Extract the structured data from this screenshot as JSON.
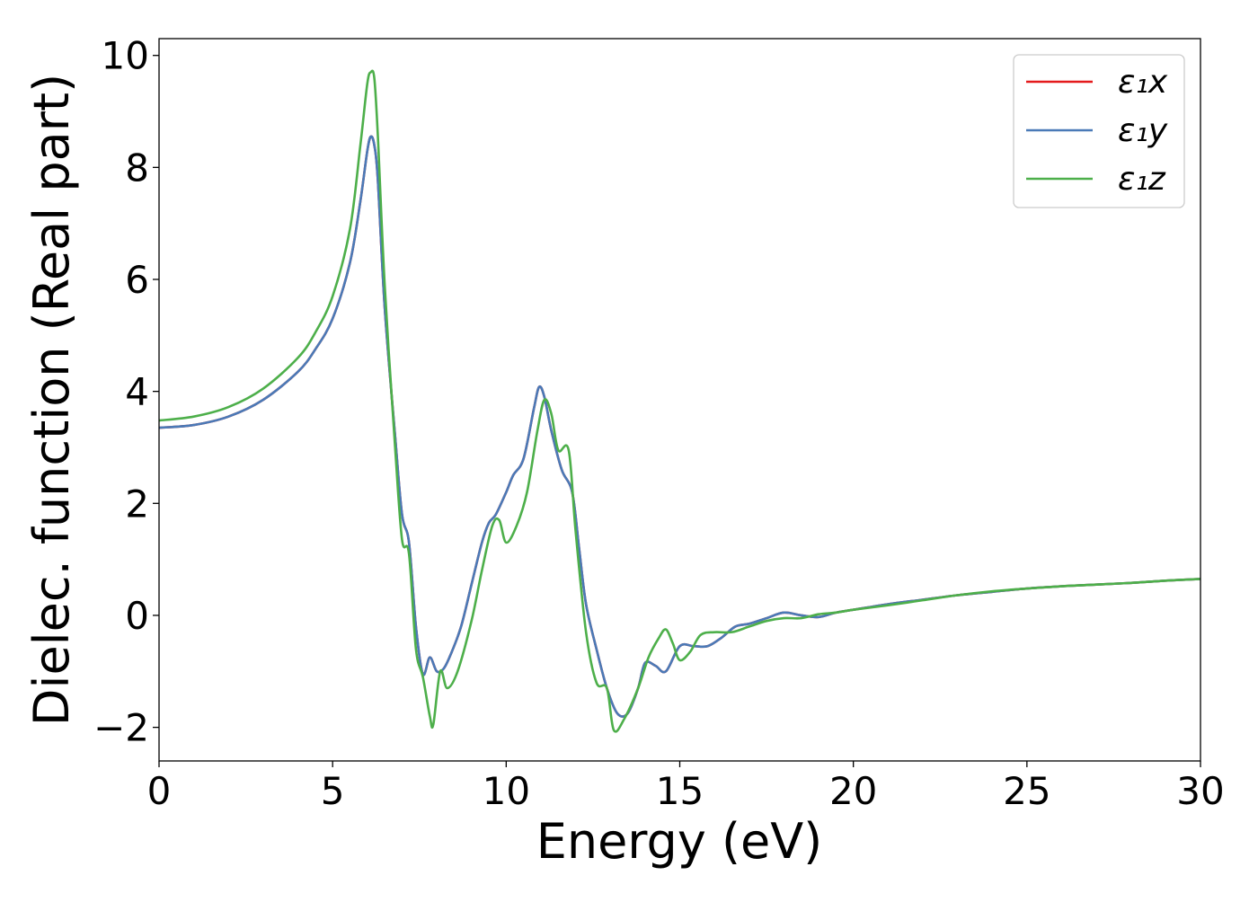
{
  "chart_data": {
    "type": "line",
    "title": "",
    "xlabel": "Energy (eV)",
    "ylabel": "Dielec. function (Real part)",
    "xlim": [
      0,
      30
    ],
    "ylim": [
      -2.6,
      10.3
    ],
    "xticks": [
      0,
      5,
      10,
      15,
      20,
      25,
      30
    ],
    "xtick_labels": [
      "0",
      "5",
      "10",
      "15",
      "20",
      "25",
      "30"
    ],
    "yticks": [
      -2,
      0,
      2,
      4,
      6,
      8,
      10
    ],
    "ytick_labels": [
      "−2",
      "0",
      "2",
      "4",
      "6",
      "8",
      "10"
    ],
    "grid": false,
    "legend_position": "top-right",
    "series": [
      {
        "name": "ε₁x",
        "color": "#e41a1c",
        "x": [
          0,
          1,
          2,
          3,
          4,
          4.5,
          5,
          5.5,
          5.8,
          6,
          6.1,
          6.2,
          6.3,
          6.5,
          6.8,
          7.0,
          7.2,
          7.4,
          7.6,
          7.8,
          8.0,
          8.2,
          8.4,
          8.7,
          9.0,
          9.3,
          9.5,
          9.7,
          10,
          10.2,
          10.5,
          10.8,
          10.95,
          11.1,
          11.3,
          11.6,
          11.9,
          12.1,
          12.3,
          12.6,
          12.9,
          13.2,
          13.5,
          13.8,
          14.0,
          14.3,
          14.6,
          15.0,
          15.4,
          15.8,
          16.2,
          16.6,
          17.0,
          17.5,
          18.0,
          18.5,
          19.0,
          19.5,
          20,
          21,
          22,
          23,
          24,
          25,
          26,
          27,
          28,
          29,
          30
        ],
        "y": [
          3.35,
          3.4,
          3.55,
          3.85,
          4.35,
          4.75,
          5.3,
          6.3,
          7.4,
          8.3,
          8.55,
          8.4,
          7.8,
          5.5,
          3.2,
          1.8,
          1.3,
          -0.2,
          -1.05,
          -0.75,
          -1.0,
          -0.95,
          -0.7,
          -0.2,
          0.55,
          1.3,
          1.65,
          1.8,
          2.2,
          2.5,
          2.8,
          3.7,
          4.08,
          3.9,
          3.3,
          2.6,
          2.2,
          1.2,
          0.2,
          -0.6,
          -1.3,
          -1.75,
          -1.75,
          -1.3,
          -0.85,
          -0.9,
          -1.0,
          -0.55,
          -0.55,
          -0.55,
          -0.4,
          -0.2,
          -0.15,
          -0.05,
          0.05,
          0.0,
          -0.03,
          0.05,
          0.1,
          0.2,
          0.28,
          0.36,
          0.42,
          0.48,
          0.52,
          0.55,
          0.58,
          0.62,
          0.65
        ]
      },
      {
        "name": "ε₁y",
        "color": "#4a7ab7",
        "x": [
          0,
          1,
          2,
          3,
          4,
          4.5,
          5,
          5.5,
          5.8,
          6,
          6.1,
          6.2,
          6.3,
          6.5,
          6.8,
          7.0,
          7.2,
          7.4,
          7.6,
          7.8,
          8.0,
          8.2,
          8.4,
          8.7,
          9.0,
          9.3,
          9.5,
          9.7,
          10,
          10.2,
          10.5,
          10.8,
          10.95,
          11.1,
          11.3,
          11.6,
          11.9,
          12.1,
          12.3,
          12.6,
          12.9,
          13.2,
          13.5,
          13.8,
          14.0,
          14.3,
          14.6,
          15.0,
          15.4,
          15.8,
          16.2,
          16.6,
          17.0,
          17.5,
          18.0,
          18.5,
          19.0,
          19.5,
          20,
          21,
          22,
          23,
          24,
          25,
          26,
          27,
          28,
          29,
          30
        ],
        "y": [
          3.35,
          3.4,
          3.55,
          3.85,
          4.35,
          4.75,
          5.3,
          6.3,
          7.4,
          8.3,
          8.55,
          8.4,
          7.8,
          5.5,
          3.2,
          1.8,
          1.3,
          -0.2,
          -1.05,
          -0.75,
          -1.0,
          -0.95,
          -0.7,
          -0.2,
          0.55,
          1.3,
          1.65,
          1.8,
          2.2,
          2.5,
          2.8,
          3.7,
          4.08,
          3.9,
          3.3,
          2.6,
          2.2,
          1.2,
          0.2,
          -0.6,
          -1.3,
          -1.75,
          -1.75,
          -1.3,
          -0.85,
          -0.9,
          -1.0,
          -0.55,
          -0.55,
          -0.55,
          -0.4,
          -0.2,
          -0.15,
          -0.05,
          0.05,
          0.0,
          -0.03,
          0.05,
          0.1,
          0.2,
          0.28,
          0.36,
          0.42,
          0.48,
          0.52,
          0.55,
          0.58,
          0.62,
          0.65
        ]
      },
      {
        "name": "ε₁z",
        "color": "#4daf4a",
        "x": [
          0,
          1,
          2,
          3,
          4,
          4.5,
          5,
          5.5,
          5.8,
          6,
          6.1,
          6.2,
          6.3,
          6.5,
          6.8,
          7.0,
          7.2,
          7.4,
          7.6,
          7.8,
          7.9,
          8.1,
          8.3,
          8.6,
          9.0,
          9.3,
          9.6,
          9.8,
          10.0,
          10.3,
          10.6,
          10.9,
          11.1,
          11.3,
          11.5,
          11.8,
          12.0,
          12.3,
          12.6,
          12.9,
          13.1,
          13.4,
          13.8,
          14.1,
          14.4,
          14.6,
          14.8,
          15.0,
          15.3,
          15.6,
          16.0,
          16.5,
          17.0,
          17.5,
          18.0,
          18.5,
          19.0,
          19.5,
          20,
          21,
          22,
          23,
          24,
          25,
          26,
          27,
          28,
          29,
          30
        ],
        "y": [
          3.48,
          3.55,
          3.72,
          4.05,
          4.6,
          5.05,
          5.7,
          6.9,
          8.4,
          9.5,
          9.7,
          9.6,
          8.6,
          5.9,
          3.0,
          1.35,
          1.1,
          -0.6,
          -1.1,
          -1.8,
          -1.95,
          -1.0,
          -1.3,
          -1.0,
          -0.1,
          0.8,
          1.6,
          1.7,
          1.3,
          1.6,
          2.2,
          3.3,
          3.85,
          3.6,
          2.95,
          2.95,
          1.5,
          -0.3,
          -1.2,
          -1.3,
          -2.05,
          -1.85,
          -1.3,
          -0.75,
          -0.4,
          -0.25,
          -0.5,
          -0.8,
          -0.65,
          -0.35,
          -0.3,
          -0.3,
          -0.2,
          -0.1,
          -0.05,
          -0.05,
          0.02,
          0.05,
          0.1,
          0.18,
          0.27,
          0.36,
          0.43,
          0.48,
          0.52,
          0.55,
          0.58,
          0.62,
          0.65
        ]
      }
    ]
  }
}
